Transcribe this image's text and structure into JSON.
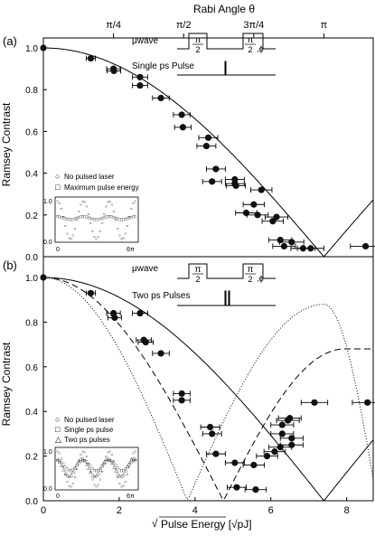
{
  "chart_data": [
    {
      "type": "scatter",
      "panel_label": "(a)",
      "ylabel": "Ramsey Contrast",
      "xlim": [
        0,
        8.7
      ],
      "ylim": [
        0,
        1.05
      ],
      "yticks": [
        "0.0",
        "0.2",
        "0.4",
        "0.6",
        "0.8",
        "1.0"
      ],
      "top_axis": {
        "label": "Rabi Angle θ",
        "ticks": [
          {
            "label": "π/4",
            "x": 1.85
          },
          {
            "label": "π/2",
            "x": 3.7
          },
          {
            "label": "3π/4",
            "x": 5.55
          },
          {
            "label": "π",
            "x": 7.4
          }
        ]
      },
      "series": [
        {
          "kind": "data",
          "points": [
            {
              "x": 0.0,
              "y": 1.0,
              "xerr": 0.0
            },
            {
              "x": 1.25,
              "y": 0.95,
              "xerr": 0.12
            },
            {
              "x": 1.85,
              "y": 0.9,
              "xerr": 0.18
            },
            {
              "x": 1.86,
              "y": 0.89,
              "xerr": 0.18
            },
            {
              "x": 2.55,
              "y": 0.86,
              "xerr": 0.2
            },
            {
              "x": 2.55,
              "y": 0.82,
              "xerr": 0.2
            },
            {
              "x": 3.1,
              "y": 0.76,
              "xerr": 0.22
            },
            {
              "x": 3.65,
              "y": 0.68,
              "xerr": 0.22
            },
            {
              "x": 3.68,
              "y": 0.62,
              "xerr": 0.22
            },
            {
              "x": 4.35,
              "y": 0.57,
              "xerr": 0.25
            },
            {
              "x": 4.3,
              "y": 0.53,
              "xerr": 0.25
            },
            {
              "x": 4.45,
              "y": 0.36,
              "xerr": 0.25
            },
            {
              "x": 4.55,
              "y": 0.42,
              "xerr": 0.25
            },
            {
              "x": 5.05,
              "y": 0.37,
              "xerr": 0.25
            },
            {
              "x": 5.05,
              "y": 0.35,
              "xerr": 0.25
            },
            {
              "x": 5.08,
              "y": 0.34,
              "xerr": 0.25
            },
            {
              "x": 5.75,
              "y": 0.32,
              "xerr": 0.28
            },
            {
              "x": 5.55,
              "y": 0.25,
              "xerr": 0.28
            },
            {
              "x": 5.35,
              "y": 0.21,
              "xerr": 0.28
            },
            {
              "x": 5.65,
              "y": 0.2,
              "xerr": 0.28
            },
            {
              "x": 6.05,
              "y": 0.17,
              "xerr": 0.28
            },
            {
              "x": 6.15,
              "y": 0.19,
              "xerr": 0.3
            },
            {
              "x": 6.25,
              "y": 0.08,
              "xerr": 0.3
            },
            {
              "x": 6.35,
              "y": 0.05,
              "xerr": 0.3
            },
            {
              "x": 6.55,
              "y": 0.07,
              "xerr": 0.32
            },
            {
              "x": 6.85,
              "y": 0.04,
              "xerr": 0.32
            },
            {
              "x": 7.05,
              "y": 0.04,
              "xerr": 0.35
            },
            {
              "x": 8.5,
              "y": 0.05,
              "xerr": 0.4
            }
          ]
        },
        {
          "kind": "fit",
          "style": "solid",
          "function": "|cos(pi*x/(2*7.4))|"
        }
      ],
      "pulse_diagram": {
        "rows": [
          {
            "label": "μwave",
            "pulses": [
              "π/2",
              "π/2,ϕ"
            ]
          },
          {
            "label": "Single ps Pulse",
            "pulses": [
              ""
            ]
          }
        ]
      },
      "inset": {
        "legend": [
          "No pulsed laser",
          "Maximum pulse energy"
        ],
        "y_ticks": [
          "1.0",
          "0.0"
        ],
        "x_ticks": [
          "0",
          "6π"
        ]
      }
    },
    {
      "type": "scatter",
      "panel_label": "(b)",
      "ylabel": "Ramsey Contrast",
      "xlabel": "Pulse Energy [√pJ]",
      "xlim": [
        0,
        8.7
      ],
      "ylim": [
        0,
        1.05
      ],
      "xticks": [
        "0",
        "2",
        "4",
        "6",
        "8"
      ],
      "yticks": [
        "0.0",
        "0.2",
        "0.4",
        "0.6",
        "0.8",
        "1.0"
      ],
      "series": [
        {
          "kind": "data",
          "points": [
            {
              "x": 0.0,
              "y": 1.0,
              "xerr": 0.0
            },
            {
              "x": 1.25,
              "y": 0.93,
              "xerr": 0.12
            },
            {
              "x": 1.85,
              "y": 0.84,
              "xerr": 0.18
            },
            {
              "x": 1.88,
              "y": 0.82,
              "xerr": 0.18
            },
            {
              "x": 2.55,
              "y": 0.84,
              "xerr": 0.2
            },
            {
              "x": 2.65,
              "y": 0.72,
              "xerr": 0.2
            },
            {
              "x": 2.7,
              "y": 0.71,
              "xerr": 0.2
            },
            {
              "x": 3.1,
              "y": 0.66,
              "xerr": 0.22
            },
            {
              "x": 3.65,
              "y": 0.48,
              "xerr": 0.22
            },
            {
              "x": 3.65,
              "y": 0.45,
              "xerr": 0.22
            },
            {
              "x": 4.4,
              "y": 0.33,
              "xerr": 0.25
            },
            {
              "x": 4.45,
              "y": 0.3,
              "xerr": 0.25
            },
            {
              "x": 4.55,
              "y": 0.21,
              "xerr": 0.25
            },
            {
              "x": 5.05,
              "y": 0.17,
              "xerr": 0.25
            },
            {
              "x": 5.1,
              "y": 0.06,
              "xerr": 0.25
            },
            {
              "x": 5.55,
              "y": 0.16,
              "xerr": 0.28
            },
            {
              "x": 5.6,
              "y": 0.05,
              "xerr": 0.28
            },
            {
              "x": 5.9,
              "y": 0.2,
              "xerr": 0.28
            },
            {
              "x": 6.1,
              "y": 0.22,
              "xerr": 0.28
            },
            {
              "x": 6.25,
              "y": 0.24,
              "xerr": 0.3
            },
            {
              "x": 6.3,
              "y": 0.3,
              "xerr": 0.3
            },
            {
              "x": 6.3,
              "y": 0.34,
              "xerr": 0.3
            },
            {
              "x": 6.45,
              "y": 0.36,
              "xerr": 0.3
            },
            {
              "x": 6.5,
              "y": 0.37,
              "xerr": 0.3
            },
            {
              "x": 6.55,
              "y": 0.28,
              "xerr": 0.3
            },
            {
              "x": 6.55,
              "y": 0.25,
              "xerr": 0.3
            },
            {
              "x": 7.15,
              "y": 0.44,
              "xerr": 0.35
            },
            {
              "x": 8.55,
              "y": 0.44,
              "xerr": 0.4
            }
          ]
        },
        {
          "kind": "model",
          "style": "solid",
          "function": "|cos(pi*x/(2*7.4))|"
        },
        {
          "kind": "model",
          "style": "dashed",
          "function": "two-pulse contrast, mimimum near x≈4.7, rises to ≈0.68"
        },
        {
          "kind": "model",
          "style": "dotted",
          "function": "two-pulse contrast, minimum near x≈3.8, peak ≈0.88 near x≈7.4"
        }
      ],
      "pulse_diagram": {
        "rows": [
          {
            "label": "μwave",
            "pulses": [
              "π/2",
              "π/2,ϕ"
            ]
          },
          {
            "label": "Two ps Pulses",
            "pulses": [
              "",
              ""
            ]
          }
        ]
      },
      "inset": {
        "legend": [
          "No pulsed laser",
          "Single ps pulse",
          "Two ps pulses"
        ],
        "y_ticks": [
          "1.0",
          "0.0"
        ],
        "x_ticks": [
          "0",
          "6π"
        ]
      }
    }
  ]
}
